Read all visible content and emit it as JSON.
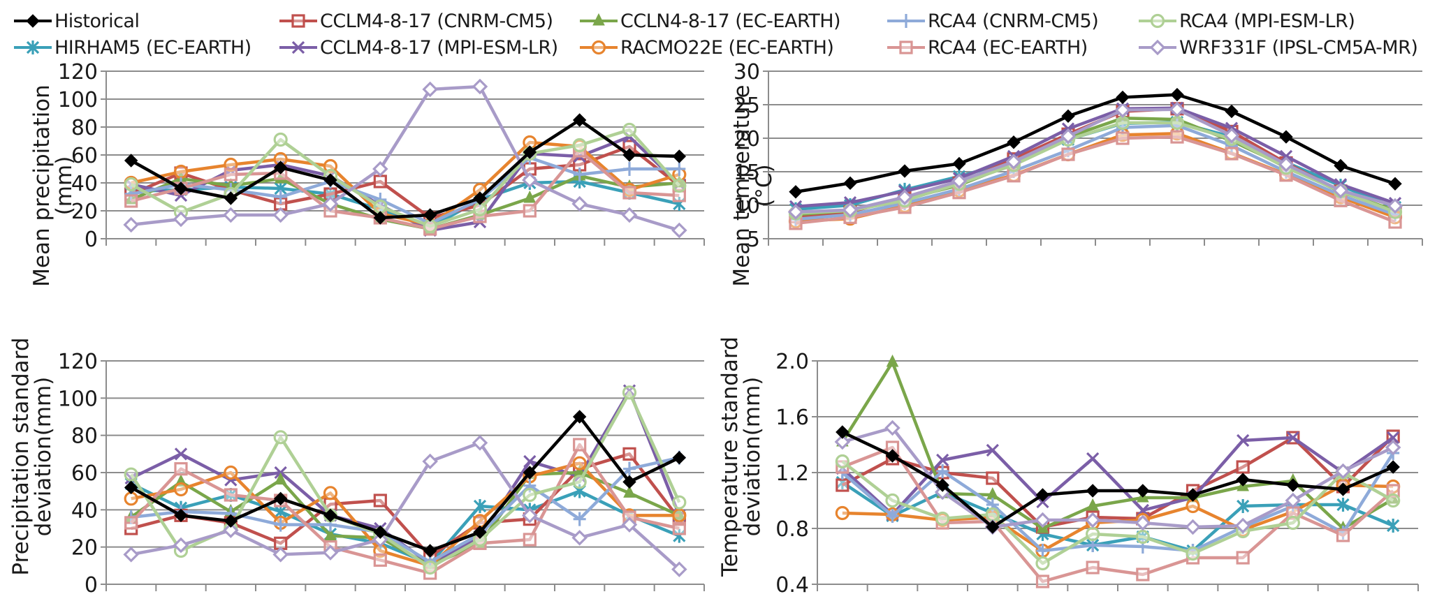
{
  "legend": [
    {
      "name": "Historical",
      "color": "#000000",
      "marker": "diamond-filled"
    },
    {
      "name": "HIRHAM5 (EC-EARTH)",
      "color": "#3aa0b8",
      "marker": "asterisk"
    },
    {
      "name": "CCLM4-8-17 (CNRM-CM5)",
      "color": "#c0504d",
      "marker": "square-open"
    },
    {
      "name": "CCLM4-8-17 (MPI-ESM-LR)",
      "color": "#7b5ea7",
      "marker": "x"
    },
    {
      "name": "CCLN4-8-17 (EC-EARTH)",
      "color": "#7aa64a",
      "marker": "triangle-filled"
    },
    {
      "name": "RACMO22E (EC-EARTH)",
      "color": "#e7842e",
      "marker": "circle-open"
    },
    {
      "name": "RCA4 (CNRM-CM5)",
      "color": "#8eaad9",
      "marker": "plus"
    },
    {
      "name": "RCA4 (EC-EARTH)",
      "color": "#d99594",
      "marker": "square-open"
    },
    {
      "name": "RCA4 (MPI-ESM-LR)",
      "color": "#afd095",
      "marker": "circle-open"
    },
    {
      "name": "WRF331F (IPSL-CM5A-MR)",
      "color": "#a89bc8",
      "marker": "diamond-open"
    }
  ],
  "chart_data": [
    {
      "id": "mean-precip",
      "type": "line",
      "title": "",
      "xlabel": "",
      "ylabel": "Mean precipitation (mm)",
      "ylabel_lines": [
        "Mean precipitation",
        "(mm)"
      ],
      "ylim": [
        0,
        120
      ],
      "yticks": [
        0,
        20,
        40,
        60,
        80,
        100,
        120
      ],
      "ytick_labels": [
        "0",
        "20",
        "40",
        "60",
        "80",
        "100",
        "120"
      ],
      "x": [
        1,
        2,
        3,
        4,
        5,
        6,
        7,
        8,
        9,
        10,
        11,
        12
      ],
      "grid": true,
      "series": [
        {
          "name": "Historical",
          "values": [
            56,
            36,
            29,
            51,
            42,
            15,
            17,
            29,
            62,
            85,
            60,
            59
          ]
        },
        {
          "name": "HIRHAM5 (EC-EARTH)",
          "values": [
            34,
            35,
            37,
            36,
            32,
            21,
            8,
            28,
            40,
            41,
            33,
            25
          ]
        },
        {
          "name": "CCLM4-8-17 (CNRM-CM5)",
          "values": [
            32,
            47,
            35,
            25,
            32,
            41,
            15,
            24,
            50,
            53,
            66,
            38
          ]
        },
        {
          "name": "CCLM4-8-17 (MPI-ESM-LR)",
          "values": [
            39,
            31,
            49,
            53,
            45,
            24,
            6,
            12,
            61,
            59,
            73,
            39
          ]
        },
        {
          "name": "CCLN4-8-17 (EC-EARTH)",
          "values": [
            28,
            43,
            38,
            43,
            25,
            14,
            7,
            17,
            29,
            45,
            37,
            40
          ]
        },
        {
          "name": "RACMO22E (EC-EARTH)",
          "values": [
            40,
            48,
            53,
            57,
            52,
            18,
            10,
            35,
            69,
            66,
            35,
            46
          ]
        },
        {
          "name": "RCA4 (CNRM-CM5)",
          "values": [
            32,
            39,
            35,
            30,
            41,
            28,
            11,
            28,
            58,
            46,
            50,
            50
          ]
        },
        {
          "name": "RCA4 (EC-EARTH)",
          "values": [
            27,
            36,
            46,
            47,
            20,
            15,
            7,
            16,
            20,
            63,
            33,
            31
          ]
        },
        {
          "name": "RCA4 (MPI-ESM-LR)",
          "values": [
            39,
            19,
            32,
            71,
            45,
            23,
            9,
            21,
            61,
            67,
            78,
            38
          ]
        },
        {
          "name": "WRF331F (IPSL-CM5A-MR)",
          "values": [
            10,
            14,
            17,
            17,
            25,
            50,
            107,
            109,
            42,
            25,
            17,
            6
          ]
        }
      ]
    },
    {
      "id": "mean-temp",
      "type": "line",
      "title": "",
      "xlabel": "",
      "ylabel": "Mean temperature (°C)",
      "ylabel_lines": [
        "Mean temperature",
        "(°C)"
      ],
      "ylim": [
        5,
        30
      ],
      "yticks": [
        5,
        10,
        15,
        20,
        25,
        30
      ],
      "ytick_labels": [
        "5",
        "10",
        "15",
        "20",
        "25",
        "30"
      ],
      "x": [
        1,
        2,
        3,
        4,
        5,
        6,
        7,
        8,
        9,
        10,
        11,
        12
      ],
      "grid": true,
      "series": [
        {
          "name": "Historical",
          "values": [
            12.0,
            13.3,
            15.1,
            16.2,
            19.4,
            23.3,
            26.1,
            26.5,
            24.0,
            20.2,
            15.9,
            13.2
          ]
        },
        {
          "name": "HIRHAM5 (EC-EARTH)",
          "values": [
            9.4,
            10.0,
            12.3,
            14.3,
            16.6,
            19.8,
            22.2,
            22.4,
            20.2,
            16.4,
            12.9,
            9.7
          ]
        },
        {
          "name": "CCLM4-8-17 (CNRM-CM5)",
          "values": [
            8.3,
            9.0,
            11.1,
            13.3,
            16.9,
            20.6,
            24.0,
            24.4,
            21.0,
            16.3,
            12.1,
            9.0
          ]
        },
        {
          "name": "CCLM4-8-17 (MPI-ESM-LR)",
          "values": [
            9.8,
            10.4,
            12.1,
            14.0,
            17.3,
            21.4,
            24.4,
            24.5,
            21.5,
            17.3,
            13.1,
            10.3
          ]
        },
        {
          "name": "CCLN4-8-17 (EC-EARTH)",
          "values": [
            8.6,
            9.2,
            10.9,
            13.0,
            16.2,
            20.2,
            23.0,
            22.8,
            19.6,
            15.8,
            12.0,
            9.2
          ]
        },
        {
          "name": "RACMO22E (EC-EARTH)",
          "values": [
            7.6,
            8.0,
            9.9,
            12.2,
            14.5,
            17.6,
            20.5,
            20.7,
            17.8,
            14.6,
            11.2,
            8.2
          ]
        },
        {
          "name": "RCA4 (CNRM-CM5)",
          "values": [
            7.9,
            8.6,
            10.3,
            12.4,
            15.1,
            18.2,
            21.6,
            21.9,
            18.9,
            15.0,
            11.5,
            8.6
          ]
        },
        {
          "name": "RCA4 (EC-EARTH)",
          "values": [
            7.3,
            8.2,
            9.7,
            11.9,
            14.4,
            17.6,
            20.0,
            20.2,
            17.7,
            14.5,
            10.7,
            7.5
          ]
        },
        {
          "name": "RCA4 (MPI-ESM-LR)",
          "values": [
            8.8,
            9.2,
            10.7,
            13.2,
            16.0,
            19.8,
            22.3,
            22.3,
            19.9,
            15.6,
            12.1,
            9.0
          ]
        },
        {
          "name": "WRF331F (IPSL-CM5A-MR)",
          "values": [
            9.0,
            9.3,
            11.2,
            13.6,
            16.5,
            20.3,
            24.2,
            24.3,
            20.4,
            16.1,
            12.2,
            9.9
          ]
        }
      ]
    },
    {
      "id": "precip-std",
      "type": "line",
      "title": "",
      "xlabel": "",
      "ylabel": "Precipitation standard deviation(mm)",
      "ylabel_lines": [
        "Precipitation standard",
        "deviation(mm)"
      ],
      "ylim": [
        0,
        120
      ],
      "yticks": [
        0,
        20,
        40,
        60,
        80,
        100,
        120
      ],
      "ytick_labels": [
        "0",
        "20",
        "40",
        "60",
        "80",
        "100",
        "120"
      ],
      "x": [
        1,
        2,
        3,
        4,
        5,
        6,
        7,
        8,
        9,
        10,
        11,
        12
      ],
      "grid": true,
      "series": [
        {
          "name": "Historical",
          "values": [
            52,
            37,
            34,
            46,
            37,
            28,
            18,
            28,
            60,
            90,
            55,
            68
          ]
        },
        {
          "name": "HIRHAM5 (EC-EARTH)",
          "values": [
            54,
            41,
            48,
            39,
            27,
            22,
            11,
            42,
            40,
            50,
            37,
            26
          ]
        },
        {
          "name": "CCLM4-8-17 (CNRM-CM5)",
          "values": [
            30,
            37,
            33,
            22,
            43,
            45,
            15,
            33,
            35,
            62,
            70,
            35
          ]
        },
        {
          "name": "CCLM4-8-17 (MPI-ESM-LR)",
          "values": [
            57,
            70,
            56,
            60,
            37,
            30,
            11,
            25,
            66,
            58,
            104,
            37
          ]
        },
        {
          "name": "CCLN4-8-17 (EC-EARTH)",
          "values": [
            36,
            55,
            39,
            56,
            26,
            25,
            10,
            22,
            59,
            60,
            49,
            37
          ]
        },
        {
          "name": "RACMO22E (EC-EARTH)",
          "values": [
            46,
            51,
            60,
            33,
            49,
            18,
            10,
            34,
            58,
            65,
            37,
            37
          ]
        },
        {
          "name": "RCA4 (CNRM-CM5)",
          "values": [
            36,
            39,
            38,
            32,
            32,
            28,
            12,
            27,
            53,
            35,
            62,
            68
          ]
        },
        {
          "name": "RCA4 (EC-EARTH)",
          "values": [
            33,
            62,
            48,
            45,
            20,
            13,
            6,
            22,
            24,
            75,
            36,
            30
          ]
        },
        {
          "name": "RCA4 (MPI-ESM-LR)",
          "values": [
            59,
            18,
            30,
            79,
            37,
            27,
            9,
            24,
            48,
            55,
            103,
            44
          ]
        },
        {
          "name": "WRF331F (IPSL-CM5A-MR)",
          "values": [
            16,
            21,
            29,
            16,
            17,
            24,
            66,
            76,
            37,
            25,
            32,
            8
          ]
        }
      ]
    },
    {
      "id": "temp-std",
      "type": "line",
      "title": "",
      "xlabel": "",
      "ylabel": "Temperature standard deviation(mm)",
      "ylabel_lines": [
        "Temperature standard",
        "deviation(mm)"
      ],
      "ylim": [
        0.4,
        2.0
      ],
      "yticks": [
        0.4,
        0.8,
        1.2,
        1.6,
        2.0
      ],
      "ytick_labels": [
        "0.4",
        "0.8",
        "1.2",
        "1.6",
        "2.0"
      ],
      "x": [
        1,
        2,
        3,
        4,
        5,
        6,
        7,
        8,
        9,
        10,
        11,
        12
      ],
      "grid": true,
      "series": [
        {
          "name": "Historical",
          "values": [
            1.49,
            1.32,
            1.11,
            0.81,
            1.04,
            1.07,
            1.07,
            1.04,
            1.15,
            1.11,
            1.08,
            1.24
          ]
        },
        {
          "name": "HIRHAM5 (EC-EARTH)",
          "values": [
            1.13,
            0.89,
            1.06,
            0.91,
            0.76,
            0.68,
            0.74,
            0.64,
            0.96,
            0.97,
            0.97,
            0.82
          ]
        },
        {
          "name": "CCLM4-8-17 (CNRM-CM5)",
          "values": [
            1.11,
            1.3,
            1.2,
            1.16,
            0.81,
            0.88,
            0.87,
            1.07,
            1.24,
            1.45,
            1.1,
            1.46
          ]
        },
        {
          "name": "CCLM4-8-17 (MPI-ESM-LR)",
          "values": [
            1.23,
            0.9,
            1.29,
            1.36,
            0.99,
            1.3,
            0.93,
            1.02,
            1.43,
            1.45,
            1.2,
            1.45
          ]
        },
        {
          "name": "CCLN4-8-17 (EC-EARTH)",
          "values": [
            1.42,
            1.99,
            1.05,
            1.04,
            0.8,
            0.96,
            1.02,
            1.02,
            1.1,
            1.14,
            0.8,
            1.01
          ]
        },
        {
          "name": "RACMO22E (EC-EARTH)",
          "values": [
            0.91,
            0.9,
            0.86,
            0.88,
            0.64,
            0.84,
            0.86,
            0.96,
            0.79,
            0.92,
            1.11,
            1.1
          ]
        },
        {
          "name": "RCA4 (CNRM-CM5)",
          "values": [
            1.2,
            0.89,
            1.21,
            0.97,
            0.64,
            0.68,
            0.67,
            0.64,
            0.81,
            0.96,
            0.77,
            1.34
          ]
        },
        {
          "name": "RCA4 (EC-EARTH)",
          "values": [
            1.24,
            1.38,
            0.84,
            0.85,
            0.42,
            0.52,
            0.47,
            0.59,
            0.59,
            0.91,
            0.75,
            1.07
          ]
        },
        {
          "name": "RCA4 (MPI-ESM-LR)",
          "values": [
            1.28,
            1.0,
            0.87,
            0.9,
            0.55,
            0.76,
            0.74,
            0.62,
            0.78,
            0.84,
            1.2,
            1.0
          ]
        },
        {
          "name": "WRF331F (IPSL-CM5A-MR)",
          "values": [
            1.42,
            1.52,
            1.06,
            0.81,
            0.86,
            0.86,
            0.84,
            0.81,
            0.82,
            1.0,
            1.21,
            1.38
          ]
        }
      ]
    }
  ]
}
